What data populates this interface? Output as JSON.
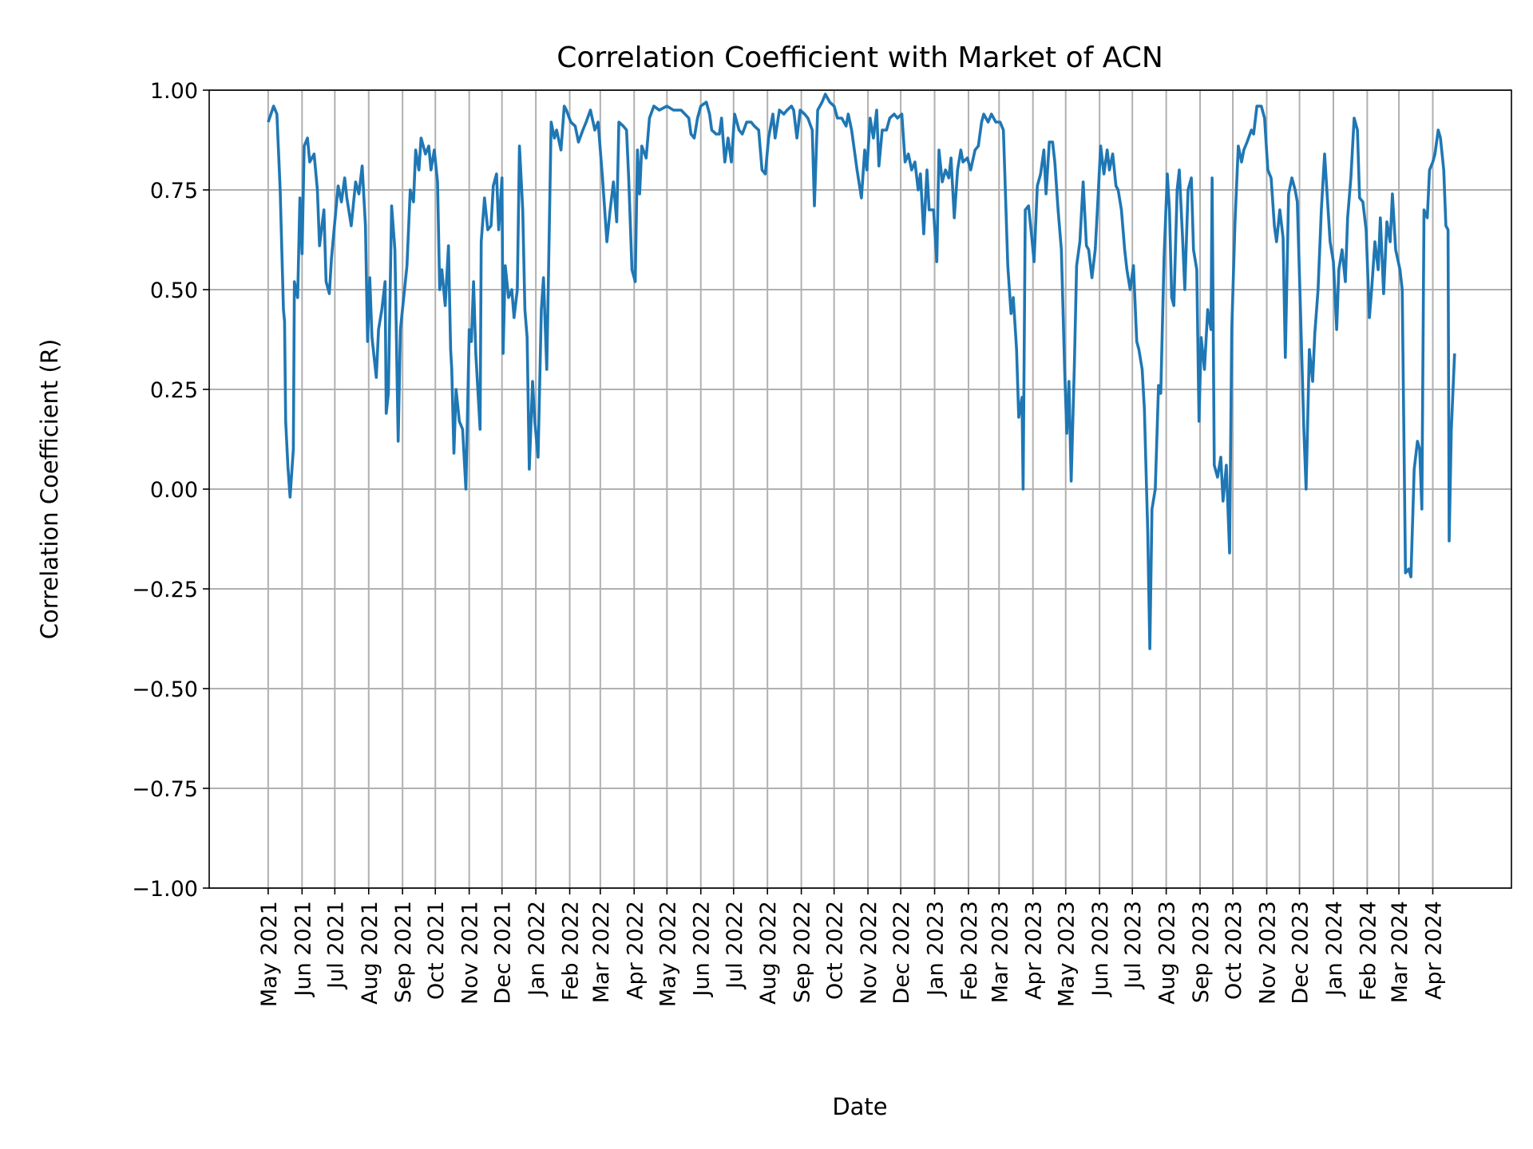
{
  "chart_data": {
    "type": "line",
    "title": "Correlation Coefficient with Market of ACN",
    "xlabel": "Date",
    "ylabel": "Correlation Coefficient (R)",
    "ylim": [
      -1.0,
      1.0
    ],
    "xlim": [
      "2021-03-08",
      "2024-06-12"
    ],
    "grid": true,
    "line_color": "#1f77b4",
    "yticks": [
      "1.00",
      "0.75",
      "0.50",
      "0.25",
      "0.00",
      "−0.25",
      "−0.50",
      "−0.75",
      "−1.00"
    ],
    "ytick_values": [
      1.0,
      0.75,
      0.5,
      0.25,
      0.0,
      -0.25,
      -0.5,
      -0.75,
      -1.0
    ],
    "xticks": [
      "May 2021",
      "Jun 2021",
      "Jul 2021",
      "Aug 2021",
      "Sep 2021",
      "Oct 2021",
      "Nov 2021",
      "Dec 2021",
      "Jan 2022",
      "Feb 2022",
      "Mar 2022",
      "Apr 2022",
      "May 2022",
      "Jun 2022",
      "Jul 2022",
      "Aug 2022",
      "Sep 2022",
      "Oct 2022",
      "Nov 2022",
      "Dec 2022",
      "Jan 2023",
      "Feb 2023",
      "Mar 2023",
      "Apr 2023",
      "May 2023",
      "Jun 2023",
      "Jul 2023",
      "Aug 2023",
      "Sep 2023",
      "Oct 2023",
      "Nov 2023",
      "Dec 2023",
      "Jan 2024",
      "Feb 2024",
      "Mar 2024",
      "Apr 2024"
    ],
    "x": [
      "2021-05-01",
      "2021-05-06",
      "2021-05-09",
      "2021-05-12",
      "2021-05-15",
      "2021-05-16",
      "2021-05-17",
      "2021-05-19",
      "2021-05-21",
      "2021-05-24",
      "2021-05-25",
      "2021-05-28",
      "2021-05-30",
      "2021-06-01",
      "2021-06-03",
      "2021-06-06",
      "2021-06-08",
      "2021-06-12",
      "2021-06-15",
      "2021-06-17",
      "2021-06-21",
      "2021-06-23",
      "2021-06-26",
      "2021-06-28",
      "2021-07-02",
      "2021-07-04",
      "2021-07-07",
      "2021-07-10",
      "2021-07-12",
      "2021-07-16",
      "2021-07-20",
      "2021-07-23",
      "2021-07-26",
      "2021-07-29",
      "2021-07-31",
      "2021-08-02",
      "2021-08-04",
      "2021-08-08",
      "2021-08-10",
      "2021-08-13",
      "2021-08-16",
      "2021-08-17",
      "2021-08-19",
      "2021-08-22",
      "2021-08-25",
      "2021-08-28",
      "2021-08-30",
      "2021-09-02",
      "2021-09-05",
      "2021-09-08",
      "2021-09-11",
      "2021-09-13",
      "2021-09-16",
      "2021-09-18",
      "2021-09-22",
      "2021-09-25",
      "2021-09-27",
      "2021-09-30",
      "2021-10-03",
      "2021-10-05",
      "2021-10-07",
      "2021-10-10",
      "2021-10-13",
      "2021-10-15",
      "2021-10-16",
      "2021-10-18",
      "2021-10-20",
      "2021-10-23",
      "2021-10-26",
      "2021-10-29",
      "2021-11-01",
      "2021-11-03",
      "2021-11-05",
      "2021-11-07",
      "2021-11-11",
      "2021-11-12",
      "2021-11-15",
      "2021-11-18",
      "2021-11-21",
      "2021-11-23",
      "2021-11-26",
      "2021-11-28",
      "2021-12-01",
      "2021-12-02",
      "2021-12-04",
      "2021-12-07",
      "2021-12-10",
      "2021-12-12",
      "2021-12-15",
      "2021-12-17",
      "2021-12-20",
      "2021-12-22",
      "2021-12-24",
      "2021-12-26",
      "2021-12-29",
      "2021-12-31",
      "2022-01-03",
      "2022-01-06",
      "2022-01-08",
      "2022-01-11",
      "2022-01-13",
      "2022-01-15",
      "2022-01-18",
      "2022-01-20",
      "2022-01-24",
      "2022-01-27",
      "2022-01-29",
      "2022-02-02",
      "2022-02-06",
      "2022-02-09",
      "2022-02-13",
      "2022-02-16",
      "2022-02-20",
      "2022-02-24",
      "2022-02-27",
      "2022-03-03",
      "2022-03-07",
      "2022-03-10",
      "2022-03-13",
      "2022-03-16",
      "2022-03-18",
      "2022-03-22",
      "2022-03-25",
      "2022-03-27",
      "2022-03-30",
      "2022-04-02",
      "2022-04-04",
      "2022-04-06",
      "2022-04-08",
      "2022-04-12",
      "2022-04-15",
      "2022-04-19",
      "2022-04-24",
      "2022-05-01",
      "2022-05-07",
      "2022-05-14",
      "2022-05-21",
      "2022-05-23",
      "2022-05-26",
      "2022-05-29",
      "2022-06-01",
      "2022-06-06",
      "2022-06-09",
      "2022-06-11",
      "2022-06-15",
      "2022-06-18",
      "2022-06-20",
      "2022-06-23",
      "2022-06-26",
      "2022-06-29",
      "2022-07-02",
      "2022-07-06",
      "2022-07-09",
      "2022-07-13",
      "2022-07-17",
      "2022-07-20",
      "2022-07-24",
      "2022-07-27",
      "2022-07-30",
      "2022-08-02",
      "2022-08-06",
      "2022-08-08",
      "2022-08-12",
      "2022-08-16",
      "2022-08-19",
      "2022-08-23",
      "2022-08-25",
      "2022-08-28",
      "2022-08-31",
      "2022-09-04",
      "2022-09-07",
      "2022-09-11",
      "2022-09-13",
      "2022-09-16",
      "2022-09-20",
      "2022-09-23",
      "2022-09-27",
      "2022-10-01",
      "2022-10-04",
      "2022-10-08",
      "2022-10-12",
      "2022-10-14",
      "2022-10-17",
      "2022-10-20",
      "2022-10-22",
      "2022-10-26",
      "2022-10-29",
      "2022-10-31",
      "2022-11-03",
      "2022-11-06",
      "2022-11-09",
      "2022-11-11",
      "2022-11-14",
      "2022-11-18",
      "2022-11-21",
      "2022-11-25",
      "2022-11-28",
      "2022-12-02",
      "2022-12-05",
      "2022-12-08",
      "2022-12-11",
      "2022-12-14",
      "2022-12-17",
      "2022-12-19",
      "2022-12-22",
      "2022-12-25",
      "2022-12-27",
      "2022-12-31",
      "2023-01-03",
      "2023-01-05",
      "2023-01-08",
      "2023-01-11",
      "2023-01-14",
      "2023-01-16",
      "2023-01-19",
      "2023-01-22",
      "2023-01-25",
      "2023-01-27",
      "2023-01-31",
      "2023-02-03",
      "2023-02-07",
      "2023-02-10",
      "2023-02-13",
      "2023-02-15",
      "2023-02-19",
      "2023-02-22",
      "2023-02-26",
      "2023-03-02",
      "2023-03-05",
      "2023-03-09",
      "2023-03-12",
      "2023-03-14",
      "2023-03-17",
      "2023-03-19",
      "2023-03-22",
      "2023-03-23",
      "2023-03-25",
      "2023-03-28",
      "2023-03-31",
      "2023-04-02",
      "2023-04-05",
      "2023-04-08",
      "2023-04-11",
      "2023-04-13",
      "2023-04-16",
      "2023-04-19",
      "2023-04-21",
      "2023-04-24",
      "2023-04-27",
      "2023-04-30",
      "2023-05-02",
      "2023-05-04",
      "2023-05-06",
      "2023-05-09",
      "2023-05-11",
      "2023-05-14",
      "2023-05-17",
      "2023-05-20",
      "2023-05-22",
      "2023-05-25",
      "2023-05-28",
      "2023-05-30",
      "2023-06-02",
      "2023-06-05",
      "2023-06-08",
      "2023-06-10",
      "2023-06-13",
      "2023-06-16",
      "2023-06-18",
      "2023-06-21",
      "2023-06-24",
      "2023-06-26",
      "2023-06-29",
      "2023-07-02",
      "2023-07-05",
      "2023-07-07",
      "2023-07-10",
      "2023-07-12",
      "2023-07-14",
      "2023-07-15",
      "2023-07-17",
      "2023-07-19",
      "2023-07-22",
      "2023-07-25",
      "2023-07-27",
      "2023-07-30",
      "2023-08-02",
      "2023-08-04",
      "2023-08-06",
      "2023-08-08",
      "2023-08-11",
      "2023-08-13",
      "2023-08-16",
      "2023-08-18",
      "2023-08-21",
      "2023-08-24",
      "2023-08-26",
      "2023-08-29",
      "2023-08-31",
      "2023-09-02",
      "2023-09-05",
      "2023-09-08",
      "2023-09-11",
      "2023-09-12",
      "2023-09-14",
      "2023-09-17",
      "2023-09-20",
      "2023-09-22",
      "2023-09-25",
      "2023-09-28",
      "2023-09-30",
      "2023-10-03",
      "2023-10-06",
      "2023-10-09",
      "2023-10-11",
      "2023-10-14",
      "2023-10-18",
      "2023-10-20",
      "2023-10-23",
      "2023-10-27",
      "2023-10-30",
      "2023-11-02",
      "2023-11-05",
      "2023-11-08",
      "2023-11-10",
      "2023-11-13",
      "2023-11-16",
      "2023-11-18",
      "2023-11-21",
      "2023-11-24",
      "2023-11-27",
      "2023-11-29",
      "2023-12-02",
      "2023-12-05",
      "2023-12-07",
      "2023-12-10",
      "2023-12-13",
      "2023-12-15",
      "2023-12-18",
      "2023-12-21",
      "2023-12-24",
      "2023-12-26",
      "2023-12-29",
      "2024-01-01",
      "2024-01-04",
      "2024-01-06",
      "2024-01-09",
      "2024-01-12",
      "2024-01-14",
      "2024-01-17",
      "2024-01-20",
      "2024-01-23",
      "2024-01-25",
      "2024-01-28",
      "2024-01-31",
      "2024-02-03",
      "2024-02-05",
      "2024-02-08",
      "2024-02-11",
      "2024-02-13",
      "2024-02-16",
      "2024-02-19",
      "2024-02-22",
      "2024-02-24",
      "2024-02-27",
      "2024-03-02",
      "2024-03-04",
      "2024-03-07",
      "2024-03-10",
      "2024-03-12",
      "2024-03-15",
      "2024-03-18",
      "2024-03-20",
      "2024-03-22",
      "2024-03-24",
      "2024-03-27",
      "2024-03-29",
      "2024-04-01",
      "2024-04-03",
      "2024-04-06",
      "2024-04-08",
      "2024-04-11",
      "2024-04-13",
      "2024-04-15",
      "2024-04-16",
      "2024-04-18",
      "2024-04-21"
    ],
    "y": [
      0.92,
      0.96,
      0.94,
      0.75,
      0.45,
      0.42,
      0.17,
      0.06,
      -0.02,
      0.1,
      0.52,
      0.48,
      0.73,
      0.59,
      0.86,
      0.88,
      0.82,
      0.84,
      0.75,
      0.61,
      0.7,
      0.52,
      0.49,
      0.58,
      0.7,
      0.76,
      0.72,
      0.78,
      0.73,
      0.66,
      0.77,
      0.74,
      0.81,
      0.66,
      0.37,
      0.53,
      0.38,
      0.28,
      0.4,
      0.45,
      0.52,
      0.19,
      0.24,
      0.71,
      0.6,
      0.12,
      0.4,
      0.48,
      0.56,
      0.75,
      0.72,
      0.85,
      0.8,
      0.88,
      0.84,
      0.86,
      0.8,
      0.85,
      0.77,
      0.5,
      0.55,
      0.46,
      0.61,
      0.35,
      0.3,
      0.09,
      0.25,
      0.17,
      0.15,
      0.0,
      0.4,
      0.37,
      0.52,
      0.34,
      0.15,
      0.62,
      0.73,
      0.65,
      0.66,
      0.76,
      0.79,
      0.65,
      0.78,
      0.34,
      0.56,
      0.48,
      0.5,
      0.43,
      0.5,
      0.86,
      0.7,
      0.45,
      0.38,
      0.05,
      0.27,
      0.17,
      0.08,
      0.45,
      0.53,
      0.3,
      0.6,
      0.92,
      0.88,
      0.9,
      0.85,
      0.96,
      0.95,
      0.92,
      0.91,
      0.87,
      0.9,
      0.92,
      0.95,
      0.9,
      0.92,
      0.78,
      0.62,
      0.7,
      0.77,
      0.67,
      0.92,
      0.91,
      0.9,
      0.78,
      0.55,
      0.52,
      0.85,
      0.74,
      0.86,
      0.83,
      0.93,
      0.96,
      0.95,
      0.96,
      0.95,
      0.95,
      0.93,
      0.89,
      0.88,
      0.93,
      0.96,
      0.97,
      0.94,
      0.9,
      0.89,
      0.89,
      0.93,
      0.82,
      0.88,
      0.82,
      0.94,
      0.9,
      0.89,
      0.92,
      0.92,
      0.91,
      0.9,
      0.8,
      0.79,
      0.88,
      0.94,
      0.88,
      0.95,
      0.94,
      0.95,
      0.96,
      0.95,
      0.88,
      0.95,
      0.94,
      0.93,
      0.9,
      0.71,
      0.95,
      0.97,
      0.99,
      0.97,
      0.96,
      0.93,
      0.93,
      0.91,
      0.94,
      0.9,
      0.84,
      0.8,
      0.73,
      0.85,
      0.8,
      0.93,
      0.88,
      0.95,
      0.81,
      0.9,
      0.9,
      0.93,
      0.94,
      0.93,
      0.94,
      0.82,
      0.84,
      0.8,
      0.82,
      0.75,
      0.79,
      0.64,
      0.8,
      0.7,
      0.7,
      0.57,
      0.85,
      0.77,
      0.8,
      0.78,
      0.83,
      0.68,
      0.8,
      0.85,
      0.82,
      0.83,
      0.8,
      0.85,
      0.86,
      0.92,
      0.94,
      0.92,
      0.94,
      0.92,
      0.92,
      0.9,
      0.56,
      0.44,
      0.48,
      0.35,
      0.18,
      0.23,
      0.0,
      0.7,
      0.71,
      0.63,
      0.57,
      0.76,
      0.79,
      0.85,
      0.74,
      0.87,
      0.87,
      0.82,
      0.7,
      0.6,
      0.3,
      0.14,
      0.27,
      0.02,
      0.32,
      0.56,
      0.62,
      0.77,
      0.61,
      0.6,
      0.53,
      0.6,
      0.7,
      0.86,
      0.79,
      0.85,
      0.8,
      0.84,
      0.76,
      0.75,
      0.7,
      0.6,
      0.55,
      0.5,
      0.56,
      0.37,
      0.35,
      0.3,
      0.2,
      0.0,
      -0.1,
      -0.4,
      -0.05,
      0.0,
      0.26,
      0.24,
      0.58,
      0.79,
      0.7,
      0.48,
      0.46,
      0.75,
      0.8,
      0.63,
      0.5,
      0.75,
      0.78,
      0.6,
      0.55,
      0.17,
      0.38,
      0.3,
      0.45,
      0.4,
      0.78,
      0.06,
      0.03,
      0.08,
      -0.03,
      0.06,
      -0.16,
      0.4,
      0.67,
      0.86,
      0.82,
      0.85,
      0.87,
      0.9,
      0.89,
      0.96,
      0.96,
      0.93,
      0.8,
      0.78,
      0.66,
      0.62,
      0.7,
      0.63,
      0.33,
      0.74,
      0.78,
      0.75,
      0.72,
      0.44,
      0.15,
      0.0,
      0.35,
      0.27,
      0.39,
      0.5,
      0.7,
      0.84,
      0.75,
      0.62,
      0.57,
      0.4,
      0.55,
      0.6,
      0.52,
      0.68,
      0.78,
      0.93,
      0.9,
      0.73,
      0.72,
      0.65,
      0.43,
      0.5,
      0.62,
      0.55,
      0.68,
      0.49,
      0.67,
      0.62,
      0.74,
      0.6,
      0.55,
      0.5,
      -0.21,
      -0.2,
      -0.22,
      0.05,
      0.12,
      0.1,
      -0.05,
      0.7,
      0.68,
      0.8,
      0.82,
      0.84,
      0.9,
      0.88,
      0.8,
      0.66,
      0.65,
      -0.13,
      0.15,
      0.34
    ]
  }
}
